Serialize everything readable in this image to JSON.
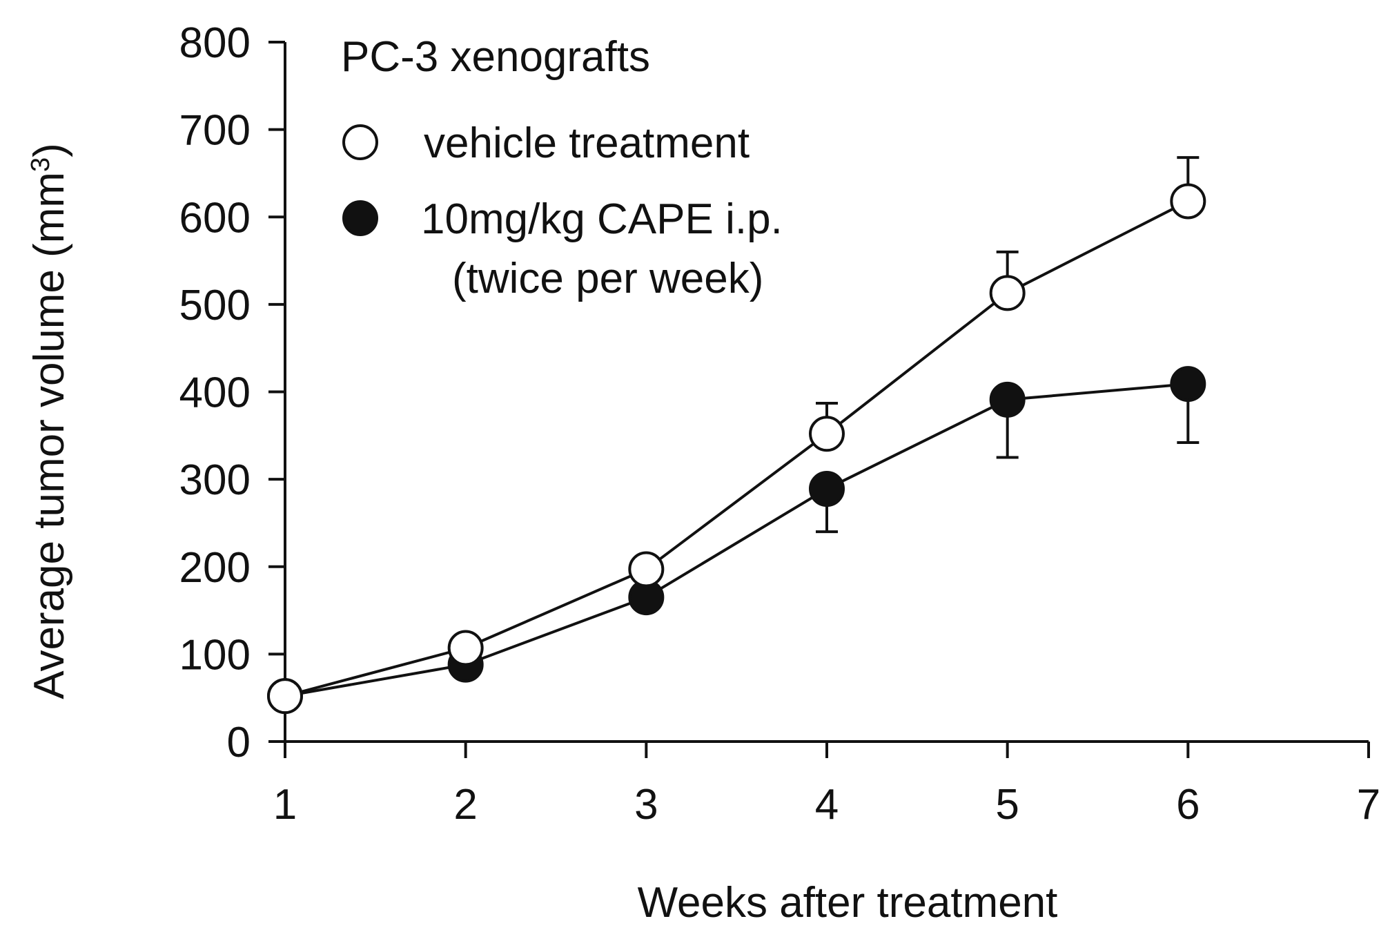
{
  "chart_data": {
    "type": "line",
    "title": "PC-3 xenografts",
    "xlabel": "Weeks after treatment",
    "ylabel": "Average tumor volume (mm",
    "ylabel_superscript": "3",
    "ylabel_close": ")",
    "xlim": [
      1,
      7
    ],
    "ylim": [
      0,
      800
    ],
    "xticks": [
      1,
      2,
      3,
      4,
      5,
      6,
      7
    ],
    "yticks": [
      0,
      100,
      200,
      300,
      400,
      500,
      600,
      700,
      800
    ],
    "grid": false,
    "legend_position": "top-left",
    "series": [
      {
        "name": "vehicle treatment",
        "marker": "open-circle",
        "color": "#111111",
        "fill": "#ffffff",
        "x": [
          1,
          2,
          3,
          4,
          5,
          6
        ],
        "values": [
          52,
          107,
          197,
          352,
          513,
          618
        ],
        "error_upper": [
          0,
          0,
          0,
          35,
          47,
          50
        ],
        "error_lower": [
          0,
          0,
          0,
          0,
          0,
          0
        ]
      },
      {
        "name": "10mg/kg CAPE i.p.",
        "name_line2": "(twice per week)",
        "marker": "filled-circle",
        "color": "#111111",
        "fill": "#111111",
        "x": [
          1,
          2,
          3,
          4,
          5,
          6
        ],
        "values": [
          52,
          88,
          165,
          289,
          391,
          409
        ],
        "error_upper": [
          0,
          0,
          0,
          0,
          0,
          0
        ],
        "error_lower": [
          0,
          0,
          0,
          49,
          66,
          67
        ]
      }
    ]
  }
}
